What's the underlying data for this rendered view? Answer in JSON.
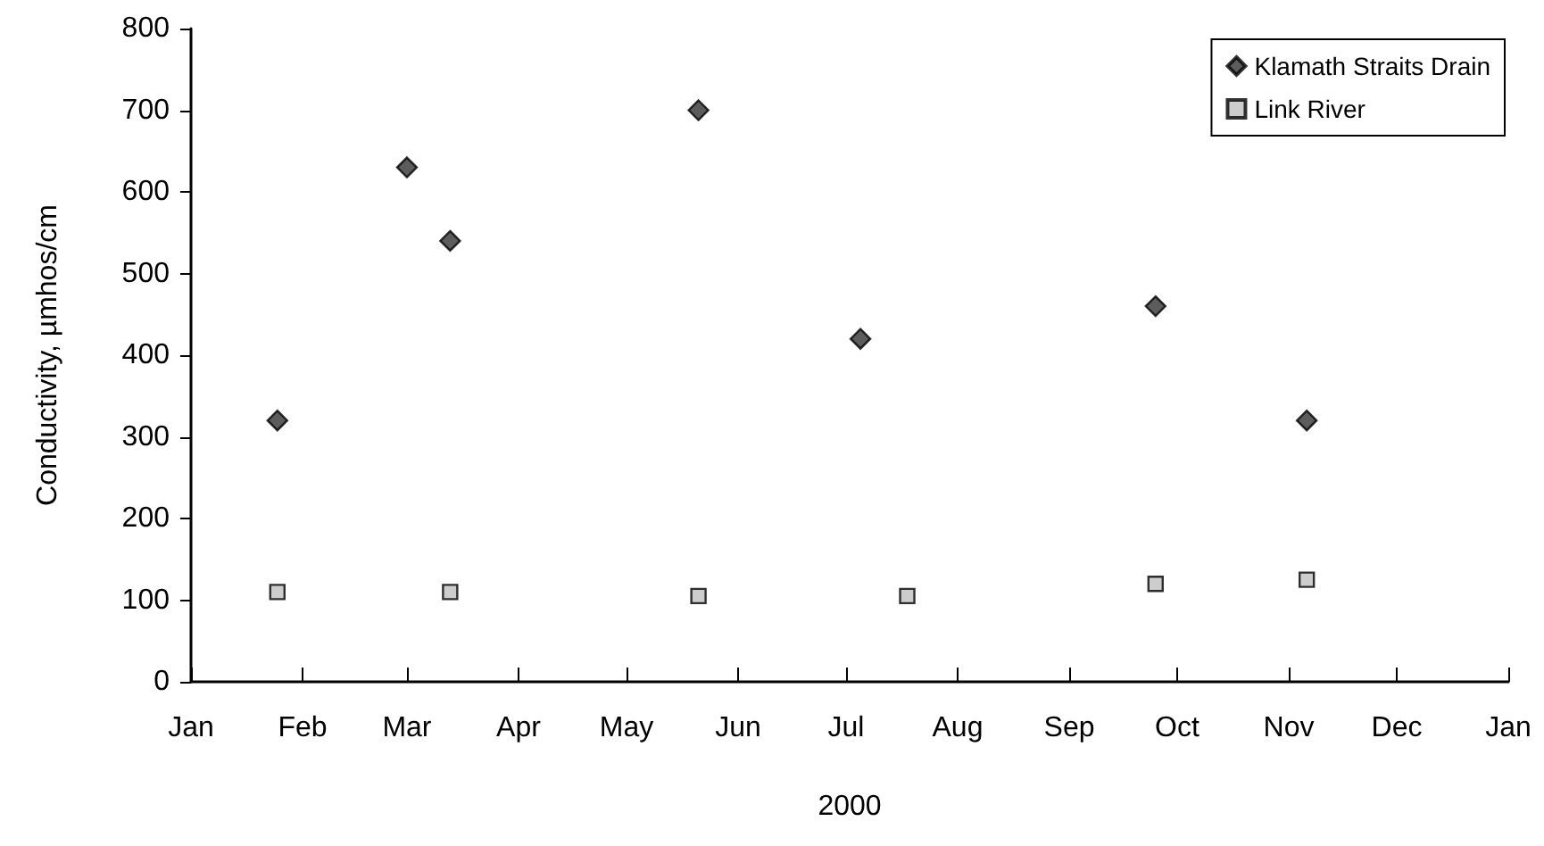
{
  "chart_data": {
    "type": "scatter",
    "xlabel": "2000",
    "ylabel": "Conductivity, µmhos/cm",
    "xlim": [
      "2000-01-01",
      "2001-01-01"
    ],
    "xticks": [
      {
        "value": "2000-01-01",
        "label": "Jan"
      },
      {
        "value": "2000-02-01",
        "label": "Feb"
      },
      {
        "value": "2000-03-01",
        "label": "Mar"
      },
      {
        "value": "2000-04-01",
        "label": "Apr"
      },
      {
        "value": "2000-05-01",
        "label": "May"
      },
      {
        "value": "2000-06-01",
        "label": "Jun"
      },
      {
        "value": "2000-07-01",
        "label": "Jul"
      },
      {
        "value": "2000-08-01",
        "label": "Aug"
      },
      {
        "value": "2000-09-01",
        "label": "Sep"
      },
      {
        "value": "2000-10-01",
        "label": "Oct"
      },
      {
        "value": "2000-11-01",
        "label": "Nov"
      },
      {
        "value": "2000-12-01",
        "label": "Dec"
      },
      {
        "value": "2001-01-01",
        "label": "Jan"
      }
    ],
    "ylim": [
      0,
      800
    ],
    "yticks": [
      0,
      100,
      200,
      300,
      400,
      500,
      600,
      700,
      800
    ],
    "legend": "top right",
    "grid": false,
    "series": [
      {
        "name": "Klamath Straits Drain",
        "color": "#333333",
        "marker": "diamond",
        "x": [
          "2000-01-25",
          "2000-03-01",
          "2000-03-13",
          "2000-05-21",
          "2000-07-05",
          "2000-09-25",
          "2000-11-06"
        ],
        "values": [
          320,
          630,
          540,
          700,
          420,
          460,
          320
        ]
      },
      {
        "name": "Link River",
        "color": "#c0c0c0",
        "marker": "square",
        "x": [
          "2000-01-25",
          "2000-03-13",
          "2000-05-21",
          "2000-07-18",
          "2000-09-25",
          "2000-11-06"
        ],
        "values": [
          110,
          110,
          105,
          105,
          120,
          125
        ]
      }
    ]
  }
}
